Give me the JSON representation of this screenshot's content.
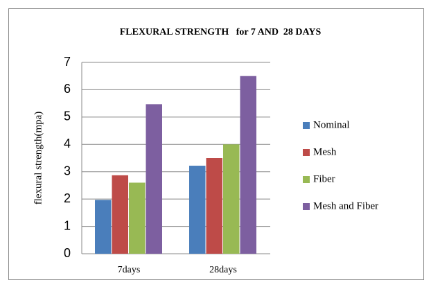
{
  "chart_data": {
    "type": "bar",
    "title": "FLEXURAL STRENGTH   for 7 AND  28 DAYS",
    "y_label": "flexural strength(mpa)",
    "categories": [
      "7days",
      "28days"
    ],
    "series": [
      {
        "name": "Nominal",
        "color": "#4a7ebb",
        "values": [
          1.97,
          3.22
        ]
      },
      {
        "name": "Mesh",
        "color": "#be4b48",
        "values": [
          2.87,
          3.5
        ]
      },
      {
        "name": "Fiber",
        "color": "#98b954",
        "values": [
          2.6,
          4.0
        ]
      },
      {
        "name": "Mesh and Fiber",
        "color": "#7d5fa0",
        "values": [
          5.47,
          6.5
        ]
      }
    ],
    "ylim": [
      0,
      7
    ],
    "yticks": [
      0,
      1,
      2,
      3,
      4,
      5,
      6,
      7
    ],
    "grid": true,
    "legend": "right"
  }
}
